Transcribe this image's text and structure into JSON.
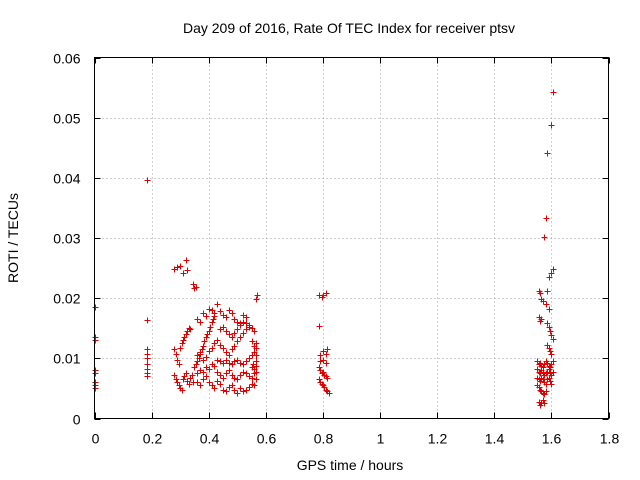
{
  "chart_data": {
    "type": "scatter",
    "title": "Day 209 of 2016, Rate Of TEC Index for receiver ptsv",
    "xlabel": "GPS time / hours",
    "ylabel": "ROTI / TECUs",
    "xlim": [
      0,
      1.8
    ],
    "ylim": [
      0,
      0.06
    ],
    "xticks": [
      "0",
      "0.2",
      "0.4",
      "0.6",
      "0.8",
      "1",
      "1.2",
      "1.4",
      "1.6",
      "1.8"
    ],
    "yticks": [
      "0",
      "0.01",
      "0.02",
      "0.03",
      "0.04",
      "0.05",
      "0.06"
    ],
    "grid": true,
    "marker": "+",
    "color": "#e00000",
    "series": [
      {
        "name": "ROTI",
        "points": [
          [
            0.0,
            0.0185
          ],
          [
            0.0,
            0.0135
          ],
          [
            0.0,
            0.013
          ],
          [
            0.0,
            0.008
          ],
          [
            0.0,
            0.0075
          ],
          [
            0.0,
            0.006
          ],
          [
            0.0,
            0.0055
          ],
          [
            0.0,
            0.005
          ],
          [
            0.185,
            0.0397
          ],
          [
            0.185,
            0.0163
          ],
          [
            0.185,
            0.0115
          ],
          [
            0.185,
            0.0108
          ],
          [
            0.185,
            0.01
          ],
          [
            0.185,
            0.009
          ],
          [
            0.185,
            0.0082
          ],
          [
            0.185,
            0.0075
          ],
          [
            0.185,
            0.007
          ],
          [
            0.28,
            0.0248
          ],
          [
            0.29,
            0.0251
          ],
          [
            0.3,
            0.0253
          ],
          [
            0.31,
            0.0241
          ],
          [
            0.32,
            0.0263
          ],
          [
            0.325,
            0.0246
          ],
          [
            0.345,
            0.0223
          ],
          [
            0.35,
            0.0217
          ],
          [
            0.355,
            0.0219
          ],
          [
            0.28,
            0.0115
          ],
          [
            0.285,
            0.0108
          ],
          [
            0.29,
            0.0098
          ],
          [
            0.295,
            0.009
          ],
          [
            0.3,
            0.0118
          ],
          [
            0.305,
            0.0125
          ],
          [
            0.31,
            0.013
          ],
          [
            0.315,
            0.0135
          ],
          [
            0.32,
            0.014
          ],
          [
            0.325,
            0.0145
          ],
          [
            0.33,
            0.015
          ],
          [
            0.335,
            0.0148
          ],
          [
            0.28,
            0.0072
          ],
          [
            0.285,
            0.0066
          ],
          [
            0.29,
            0.006
          ],
          [
            0.295,
            0.0055
          ],
          [
            0.3,
            0.005
          ],
          [
            0.305,
            0.0048
          ],
          [
            0.31,
            0.0065
          ],
          [
            0.315,
            0.007
          ],
          [
            0.32,
            0.0075
          ],
          [
            0.325,
            0.0062
          ],
          [
            0.33,
            0.0058
          ],
          [
            0.335,
            0.0068
          ],
          [
            0.34,
            0.0072
          ],
          [
            0.345,
            0.006
          ],
          [
            0.35,
            0.0085
          ],
          [
            0.355,
            0.009
          ],
          [
            0.36,
            0.0095
          ],
          [
            0.365,
            0.01
          ],
          [
            0.37,
            0.0108
          ],
          [
            0.375,
            0.0115
          ],
          [
            0.38,
            0.012
          ],
          [
            0.385,
            0.0128
          ],
          [
            0.39,
            0.0135
          ],
          [
            0.395,
            0.014
          ],
          [
            0.4,
            0.0145
          ],
          [
            0.405,
            0.0152
          ],
          [
            0.41,
            0.016
          ],
          [
            0.415,
            0.0165
          ],
          [
            0.42,
            0.017
          ],
          [
            0.36,
            0.0165
          ],
          [
            0.37,
            0.016
          ],
          [
            0.38,
            0.0175
          ],
          [
            0.39,
            0.017
          ],
          [
            0.4,
            0.0182
          ],
          [
            0.41,
            0.018
          ],
          [
            0.42,
            0.0175
          ],
          [
            0.43,
            0.019
          ],
          [
            0.44,
            0.0178
          ],
          [
            0.45,
            0.0172
          ],
          [
            0.46,
            0.0168
          ],
          [
            0.47,
            0.018
          ],
          [
            0.48,
            0.0175
          ],
          [
            0.49,
            0.0165
          ],
          [
            0.5,
            0.016
          ],
          [
            0.51,
            0.0158
          ],
          [
            0.52,
            0.0172
          ],
          [
            0.53,
            0.0168
          ],
          [
            0.36,
            0.006
          ],
          [
            0.37,
            0.0055
          ],
          [
            0.38,
            0.0065
          ],
          [
            0.39,
            0.007
          ],
          [
            0.4,
            0.006
          ],
          [
            0.41,
            0.0055
          ],
          [
            0.42,
            0.005
          ],
          [
            0.43,
            0.0062
          ],
          [
            0.44,
            0.0058
          ],
          [
            0.45,
            0.0048
          ],
          [
            0.46,
            0.0045
          ],
          [
            0.47,
            0.0052
          ],
          [
            0.48,
            0.0055
          ],
          [
            0.49,
            0.0048
          ],
          [
            0.5,
            0.0042
          ],
          [
            0.51,
            0.005
          ],
          [
            0.52,
            0.0045
          ],
          [
            0.53,
            0.0048
          ],
          [
            0.54,
            0.0052
          ],
          [
            0.55,
            0.0058
          ],
          [
            0.56,
            0.0055
          ],
          [
            0.36,
            0.0075
          ],
          [
            0.37,
            0.008
          ],
          [
            0.38,
            0.0078
          ],
          [
            0.39,
            0.0085
          ],
          [
            0.4,
            0.0082
          ],
          [
            0.41,
            0.009
          ],
          [
            0.42,
            0.0088
          ],
          [
            0.43,
            0.0078
          ],
          [
            0.44,
            0.0072
          ],
          [
            0.45,
            0.0068
          ],
          [
            0.46,
            0.0075
          ],
          [
            0.47,
            0.008
          ],
          [
            0.48,
            0.0072
          ],
          [
            0.49,
            0.0068
          ],
          [
            0.5,
            0.0065
          ],
          [
            0.51,
            0.0072
          ],
          [
            0.52,
            0.0078
          ],
          [
            0.53,
            0.0075
          ],
          [
            0.54,
            0.007
          ],
          [
            0.55,
            0.0068
          ],
          [
            0.56,
            0.0075
          ],
          [
            0.36,
            0.0105
          ],
          [
            0.37,
            0.011
          ],
          [
            0.38,
            0.0098
          ],
          [
            0.39,
            0.0102
          ],
          [
            0.4,
            0.0112
          ],
          [
            0.41,
            0.0118
          ],
          [
            0.42,
            0.0125
          ],
          [
            0.43,
            0.013
          ],
          [
            0.44,
            0.0122
          ],
          [
            0.45,
            0.0118
          ],
          [
            0.46,
            0.011
          ],
          [
            0.47,
            0.0105
          ],
          [
            0.48,
            0.0115
          ],
          [
            0.49,
            0.012
          ],
          [
            0.5,
            0.0128
          ],
          [
            0.51,
            0.0135
          ],
          [
            0.52,
            0.0142
          ],
          [
            0.53,
            0.0148
          ],
          [
            0.54,
            0.0152
          ],
          [
            0.55,
            0.015
          ],
          [
            0.56,
            0.0145
          ],
          [
            0.43,
            0.0098
          ],
          [
            0.44,
            0.0095
          ],
          [
            0.45,
            0.0092
          ],
          [
            0.46,
            0.0098
          ],
          [
            0.47,
            0.0092
          ],
          [
            0.48,
            0.009
          ],
          [
            0.49,
            0.0095
          ],
          [
            0.5,
            0.0098
          ],
          [
            0.51,
            0.0092
          ],
          [
            0.52,
            0.009
          ],
          [
            0.53,
            0.0095
          ],
          [
            0.54,
            0.01
          ],
          [
            0.55,
            0.0105
          ],
          [
            0.56,
            0.011
          ],
          [
            0.44,
            0.0148
          ],
          [
            0.45,
            0.0152
          ],
          [
            0.46,
            0.0145
          ],
          [
            0.47,
            0.014
          ],
          [
            0.48,
            0.0135
          ],
          [
            0.49,
            0.0142
          ],
          [
            0.5,
            0.0148
          ],
          [
            0.51,
            0.0155
          ],
          [
            0.52,
            0.016
          ],
          [
            0.53,
            0.0158
          ],
          [
            0.54,
            0.0155
          ],
          [
            0.55,
            0.0128
          ],
          [
            0.56,
            0.012
          ],
          [
            0.565,
            0.0125
          ],
          [
            0.565,
            0.0198
          ],
          [
            0.57,
            0.0205
          ],
          [
            0.55,
            0.0085
          ],
          [
            0.555,
            0.009
          ],
          [
            0.56,
            0.0082
          ],
          [
            0.565,
            0.0088
          ],
          [
            0.565,
            0.0095
          ],
          [
            0.565,
            0.0065
          ],
          [
            0.565,
            0.0078
          ],
          [
            0.565,
            0.0105
          ],
          [
            0.565,
            0.0118
          ],
          [
            0.785,
            0.0205
          ],
          [
            0.795,
            0.0202
          ],
          [
            0.8,
            0.0206
          ],
          [
            0.81,
            0.0209
          ],
          [
            0.785,
            0.0153
          ],
          [
            0.79,
            0.0105
          ],
          [
            0.8,
            0.0112
          ],
          [
            0.81,
            0.0108
          ],
          [
            0.815,
            0.0115
          ],
          [
            0.79,
            0.0095
          ],
          [
            0.8,
            0.0098
          ],
          [
            0.81,
            0.0092
          ],
          [
            0.785,
            0.0085
          ],
          [
            0.79,
            0.008
          ],
          [
            0.795,
            0.0075
          ],
          [
            0.8,
            0.0078
          ],
          [
            0.805,
            0.0072
          ],
          [
            0.81,
            0.007
          ],
          [
            0.815,
            0.0068
          ],
          [
            0.785,
            0.0065
          ],
          [
            0.79,
            0.006
          ],
          [
            0.795,
            0.0058
          ],
          [
            0.8,
            0.0055
          ],
          [
            0.805,
            0.0052
          ],
          [
            0.81,
            0.0048
          ],
          [
            0.815,
            0.0045
          ],
          [
            0.82,
            0.0042
          ],
          [
            1.555,
            0.0212
          ],
          [
            1.56,
            0.0208
          ],
          [
            1.565,
            0.0198
          ],
          [
            1.57,
            0.0195
          ],
          [
            1.58,
            0.019
          ],
          [
            1.585,
            0.0212
          ],
          [
            1.59,
            0.0182
          ],
          [
            1.555,
            0.0168
          ],
          [
            1.56,
            0.0162
          ],
          [
            1.565,
            0.0165
          ],
          [
            1.585,
            0.0158
          ],
          [
            1.59,
            0.0152
          ],
          [
            1.595,
            0.0145
          ],
          [
            1.6,
            0.0138
          ],
          [
            1.605,
            0.0132
          ],
          [
            1.585,
            0.0122
          ],
          [
            1.59,
            0.0118
          ],
          [
            1.595,
            0.0112
          ],
          [
            1.6,
            0.0108
          ],
          [
            1.55,
            0.0095
          ],
          [
            1.555,
            0.009
          ],
          [
            1.56,
            0.0092
          ],
          [
            1.565,
            0.0088
          ],
          [
            1.57,
            0.0085
          ],
          [
            1.575,
            0.009
          ],
          [
            1.58,
            0.0095
          ],
          [
            1.585,
            0.0092
          ],
          [
            1.59,
            0.0088
          ],
          [
            1.595,
            0.0085
          ],
          [
            1.6,
            0.009
          ],
          [
            1.605,
            0.0095
          ],
          [
            1.55,
            0.0082
          ],
          [
            1.555,
            0.0078
          ],
          [
            1.56,
            0.0075
          ],
          [
            1.565,
            0.008
          ],
          [
            1.57,
            0.0078
          ],
          [
            1.575,
            0.0072
          ],
          [
            1.58,
            0.0075
          ],
          [
            1.585,
            0.0078
          ],
          [
            1.59,
            0.0082
          ],
          [
            1.595,
            0.0075
          ],
          [
            1.6,
            0.0072
          ],
          [
            1.605,
            0.0078
          ],
          [
            1.55,
            0.0068
          ],
          [
            1.555,
            0.0065
          ],
          [
            1.56,
            0.0062
          ],
          [
            1.565,
            0.0068
          ],
          [
            1.57,
            0.0065
          ],
          [
            1.575,
            0.006
          ],
          [
            1.58,
            0.0058
          ],
          [
            1.585,
            0.0065
          ],
          [
            1.59,
            0.0068
          ],
          [
            1.595,
            0.0062
          ],
          [
            1.6,
            0.0058
          ],
          [
            1.55,
            0.0055
          ],
          [
            1.555,
            0.0052
          ],
          [
            1.56,
            0.0048
          ],
          [
            1.565,
            0.0045
          ],
          [
            1.57,
            0.0042
          ],
          [
            1.575,
            0.004
          ],
          [
            1.58,
            0.0045
          ],
          [
            1.555,
            0.0028
          ],
          [
            1.56,
            0.0022
          ],
          [
            1.565,
            0.0025
          ],
          [
            1.57,
            0.003
          ],
          [
            1.575,
            0.0025
          ],
          [
            1.575,
            0.0302
          ],
          [
            1.58,
            0.0333
          ],
          [
            1.585,
            0.0442
          ],
          [
            1.59,
            0.0235
          ],
          [
            1.6,
            0.0487
          ],
          [
            1.605,
            0.0543
          ],
          [
            1.605,
            0.0248
          ],
          [
            1.6,
            0.0242
          ]
        ]
      }
    ]
  }
}
